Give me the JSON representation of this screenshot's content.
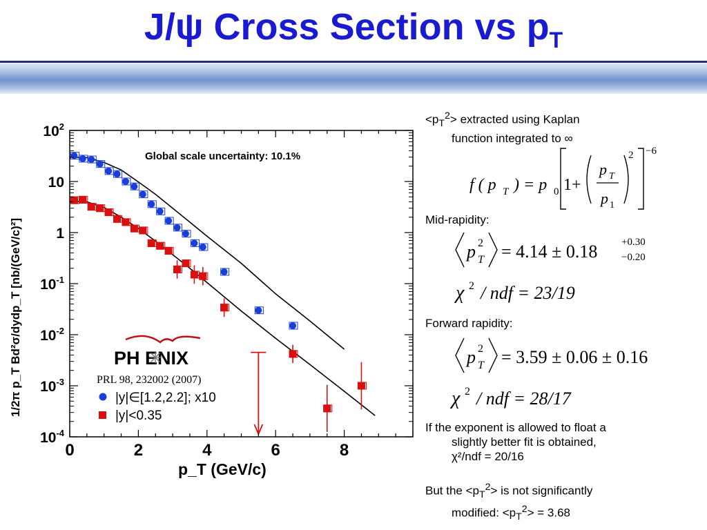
{
  "slide": {
    "title_main": "J/ψ Cross Section vs p",
    "title_sub": "T"
  },
  "chart_data": {
    "type": "scatter",
    "ylog": true,
    "xlim": [
      0,
      10
    ],
    "ylim_exp": [
      -4,
      2
    ],
    "x_ticks": [
      "0",
      "2",
      "4",
      "6",
      "8"
    ],
    "y_ticks": [
      "10^2",
      "10",
      "1",
      "10^-1",
      "10^-2",
      "10^-3",
      "10^-4"
    ],
    "xlabel": "p_T (GeV/c)",
    "ylabel": "1/2π p_T Bd²σ/dydp_T [nb/(GeV/c)²]",
    "annotation": "Global scale uncertainty: 10.1%",
    "logo_text": "PH ENIX",
    "reference": "PRL 98, 232002 (2007)",
    "series": [
      {
        "name": "|y|∈[1.2,2.2]; x10",
        "color": "#1a3fd8",
        "marker": "circle",
        "x": [
          0.13,
          0.38,
          0.63,
          0.88,
          1.13,
          1.38,
          1.63,
          1.88,
          2.13,
          2.38,
          2.63,
          2.88,
          3.13,
          3.38,
          3.63,
          3.88,
          4.5,
          5.5,
          6.5
        ],
        "y": [
          32,
          28,
          27,
          22,
          16,
          14,
          10,
          8,
          5.6,
          3.6,
          2.6,
          1.7,
          1.25,
          0.95,
          0.62,
          0.52,
          0.17,
          0.03,
          0.015
        ]
      },
      {
        "name": "|y|<0.35",
        "color": "#d81010",
        "marker": "square",
        "x": [
          0.13,
          0.38,
          0.63,
          0.88,
          1.13,
          1.38,
          1.63,
          1.88,
          2.13,
          2.38,
          2.63,
          2.88,
          3.13,
          3.38,
          3.63,
          3.88,
          4.5,
          6.5,
          7.5,
          8.5
        ],
        "y": [
          4.3,
          4.4,
          3.2,
          3.0,
          2.5,
          1.85,
          1.6,
          1.2,
          1.1,
          0.62,
          0.55,
          0.44,
          0.19,
          0.25,
          0.15,
          0.14,
          0.034,
          0.0042,
          0.00036,
          0.001
        ]
      }
    ],
    "fits": [
      {
        "x": [
          0,
          0.5,
          1,
          1.5,
          2,
          2.5,
          3,
          3.5,
          4,
          5,
          6,
          7,
          8
        ],
        "y": [
          30,
          29.4,
          23.6,
          16.8,
          9.8,
          5.6,
          3.0,
          1.6,
          0.85,
          0.25,
          0.063,
          0.0186,
          0.0052
        ]
      },
      {
        "x": [
          0,
          0.5,
          1,
          1.5,
          2,
          2.5,
          3,
          3.5,
          4,
          5,
          6,
          7,
          8,
          8.9
        ],
        "y": [
          4.1,
          4.0,
          3.1,
          2.0,
          1.2,
          0.68,
          0.37,
          0.2,
          0.105,
          0.029,
          0.0085,
          0.0026,
          0.00078,
          0.00026
        ]
      }
    ],
    "upper_limit": {
      "x": 5.5,
      "y": 0.0045
    }
  },
  "text": {
    "intro_1a": "<p",
    "intro_1b": "T",
    "intro_1c": "2",
    "intro_1d": "> extracted using Kaplan",
    "intro_2": "function integrated to ∞",
    "kaplan_lhs": "f ( p",
    "kaplan_sub": "T",
    "kaplan_eq": ") =  p",
    "kaplan_p0": "0",
    "kaplan_one": "1+",
    "kaplan_num": "p",
    "kaplan_num_sub": "T",
    "kaplan_den": "p",
    "kaplan_den_sub": "1",
    "kaplan_pow2": "2",
    "kaplan_pow": "−6",
    "mid_label": "Mid-rapidity:",
    "mid_value": "= 4.14 ± 0.18",
    "mid_up": "+0.30",
    "mid_down": "−0.20",
    "mid_chi": "/ ndf = 23/19",
    "fwd_label": "Forward rapidity:",
    "fwd_value": "= 3.59 ± 0.06 ± 0.16",
    "fwd_chi": "/ ndf = 28/17",
    "float_1": "If the exponent is allowed to float a",
    "float_2": "slightly better fit is obtained,",
    "float_3": "χ²/ndf = 20/16",
    "but_1": "But the <p",
    "but_sub": "T",
    "but_sup": "2",
    "but_2": "> is not significantly",
    "mod_1": "modified: <p",
    "mod_sub": "T",
    "mod_sup": "2",
    "mod_2": "> = 3.68",
    "sym_p": "p",
    "sym_T": "T",
    "sym_2": "2",
    "sym_chi": "χ"
  }
}
